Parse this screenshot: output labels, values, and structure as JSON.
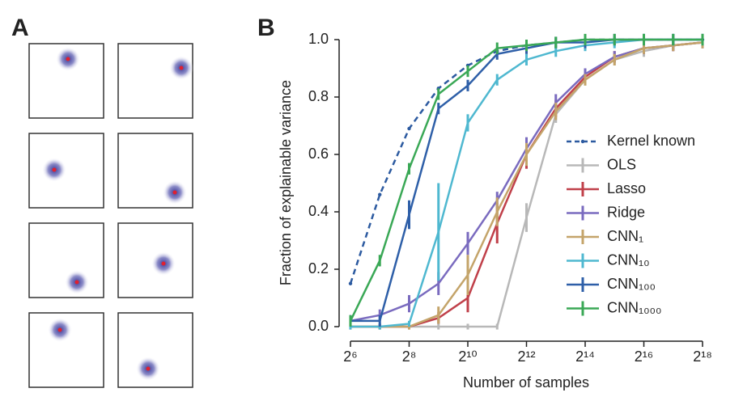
{
  "panel_labels": [
    "A",
    "B"
  ],
  "chart_data": {
    "type": "line",
    "xlabel": "Number of samples",
    "ylabel": "Fraction of explainable variance",
    "xscale": "log2",
    "x": [
      64,
      128,
      256,
      512,
      1024,
      2048,
      4096,
      8192,
      16384,
      32768,
      65536,
      131072,
      262144
    ],
    "xlim": [
      64,
      262144
    ],
    "xticks": [
      {
        "value": 64,
        "label": "2⁶"
      },
      {
        "value": 256,
        "label": "2⁸"
      },
      {
        "value": 1024,
        "label": "2¹⁰"
      },
      {
        "value": 4096,
        "label": "2¹²"
      },
      {
        "value": 16384,
        "label": "2¹⁴"
      },
      {
        "value": 65536,
        "label": "2¹⁶"
      },
      {
        "value": 262144,
        "label": "2¹⁸"
      }
    ],
    "ylim": [
      0,
      1
    ],
    "yticks": [
      {
        "value": 0,
        "label": "0.0"
      },
      0.2,
      0.4,
      0.6,
      0.8,
      {
        "value": 1,
        "label": "1.0"
      }
    ],
    "grid": false,
    "legend": "right",
    "series": [
      {
        "name": "Kernel known",
        "color": "#2c5aa0",
        "dashed": true,
        "values": [
          0.15,
          0.46,
          0.69,
          0.83,
          0.91,
          0.96,
          0.98,
          0.99,
          1.0,
          1.0,
          1.0,
          1.0,
          1.0
        ]
      },
      {
        "name": "OLS",
        "color": "#b8b8b8",
        "values": [
          0,
          0,
          0,
          0,
          0,
          0,
          0.38,
          0.74,
          0.86,
          0.93,
          0.96,
          0.98,
          0.99
        ],
        "errors": [
          0.01,
          0.01,
          0.01,
          0.01,
          0.01,
          0.01,
          0.05,
          0.03,
          0.02,
          0.02,
          0.02,
          0.02,
          0.02
        ]
      },
      {
        "name": "Lasso",
        "color": "#c0404a",
        "values": [
          0,
          0,
          0,
          0.03,
          0.1,
          0.36,
          0.6,
          0.76,
          0.87,
          0.94,
          0.97,
          0.98,
          0.99
        ],
        "errors": [
          0.01,
          0.01,
          0.01,
          0.02,
          0.05,
          0.07,
          0.05,
          0.03,
          0.02,
          0.02,
          0.02,
          0.02,
          0.02
        ]
      },
      {
        "name": "Ridge",
        "color": "#7a6bbf",
        "values": [
          0.02,
          0.04,
          0.08,
          0.15,
          0.29,
          0.44,
          0.62,
          0.78,
          0.88,
          0.94,
          0.97,
          0.98,
          0.99
        ],
        "errors": [
          0.02,
          0.02,
          0.03,
          0.04,
          0.04,
          0.03,
          0.04,
          0.03,
          0.02,
          0.02,
          0.02,
          0.02,
          0.02
        ]
      },
      {
        "name": "CNN₁",
        "color": "#c4a46a",
        "values": [
          0,
          0,
          0,
          0.04,
          0.18,
          0.4,
          0.6,
          0.75,
          0.86,
          0.93,
          0.97,
          0.98,
          0.99
        ],
        "errors": [
          0.01,
          0.01,
          0.01,
          0.03,
          0.07,
          0.05,
          0.04,
          0.03,
          0.02,
          0.02,
          0.02,
          0.02,
          0.02
        ]
      },
      {
        "name": "CNN₁₀",
        "color": "#4fb8d0",
        "values": [
          0,
          0,
          0.01,
          0.33,
          0.71,
          0.86,
          0.93,
          0.96,
          0.98,
          0.99,
          1.0,
          1.0,
          1.0
        ],
        "errors": [
          0.01,
          0.01,
          0.01,
          0.17,
          0.03,
          0.02,
          0.02,
          0.02,
          0.02,
          0.02,
          0.02,
          0.02,
          0.02
        ]
      },
      {
        "name": "CNN₁₀₀",
        "color": "#2e5fa8",
        "values": [
          0.02,
          0.02,
          0.39,
          0.76,
          0.84,
          0.95,
          0.97,
          0.99,
          0.99,
          1.0,
          1.0,
          1.0,
          1.0
        ],
        "errors": [
          0.02,
          0.02,
          0.05,
          0.02,
          0.02,
          0.02,
          0.02,
          0.02,
          0.02,
          0.02,
          0.02,
          0.02,
          0.02
        ]
      },
      {
        "name": "CNN₁₀₀₀",
        "color": "#3aa856",
        "values": [
          0.02,
          0.23,
          0.55,
          0.81,
          0.89,
          0.97,
          0.98,
          0.99,
          1.0,
          1.0,
          1.0,
          1.0,
          1.0
        ],
        "errors": [
          0.02,
          0.02,
          0.02,
          0.02,
          0.02,
          0.02,
          0.02,
          0.02,
          0.02,
          0.02,
          0.02,
          0.02,
          0.02
        ]
      }
    ]
  }
}
